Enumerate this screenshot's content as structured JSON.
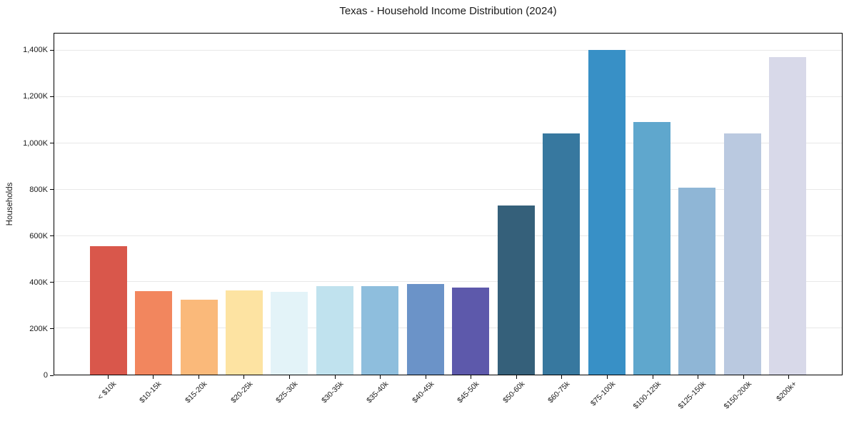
{
  "chart_data": {
    "type": "bar",
    "title": "Texas - Household Income Distribution (2024)",
    "xlabel": "",
    "ylabel": "Households",
    "categories": [
      "< $10k",
      "$10-15k",
      "$15-20k",
      "$20-25k",
      "$25-30k",
      "$30-35k",
      "$35-40k",
      "$40-45k",
      "$45-50k",
      "$50-60k",
      "$60-75k",
      "$75-100k",
      "$100-125k",
      "$125-150k",
      "$150-200k",
      "$200k+"
    ],
    "values_thousands": [
      554,
      360,
      323,
      364,
      358,
      383,
      383,
      392,
      375,
      731,
      1044,
      1404,
      1092,
      810,
      1044,
      1372
    ],
    "bar_colors": [
      "#d9574b",
      "#f2865e",
      "#fab97a",
      "#fde3a2",
      "#e3f3f8",
      "#c0e2ee",
      "#8ebedd",
      "#6b93c8",
      "#5d59ab",
      "#35607a",
      "#37789f",
      "#3890c6",
      "#5fa7cd",
      "#8fb6d6",
      "#bac9e0",
      "#d8d9e9"
    ],
    "y_tick_values": [
      0,
      200,
      400,
      600,
      800,
      1000,
      1200,
      1400
    ],
    "y_tick_labels": [
      "0",
      "200K",
      "400K",
      "600K",
      "800K",
      "1,000K",
      "1,200K",
      "1,400K"
    ],
    "ylim": [
      0,
      1475
    ],
    "grid": "horizontal",
    "legend_position": "none",
    "x_tick_rotation_deg": 45
  },
  "colors": {
    "background": "#ffffff",
    "gridline": "#e8e8e8",
    "spine": "#000000",
    "text": "#1a1a1a"
  }
}
